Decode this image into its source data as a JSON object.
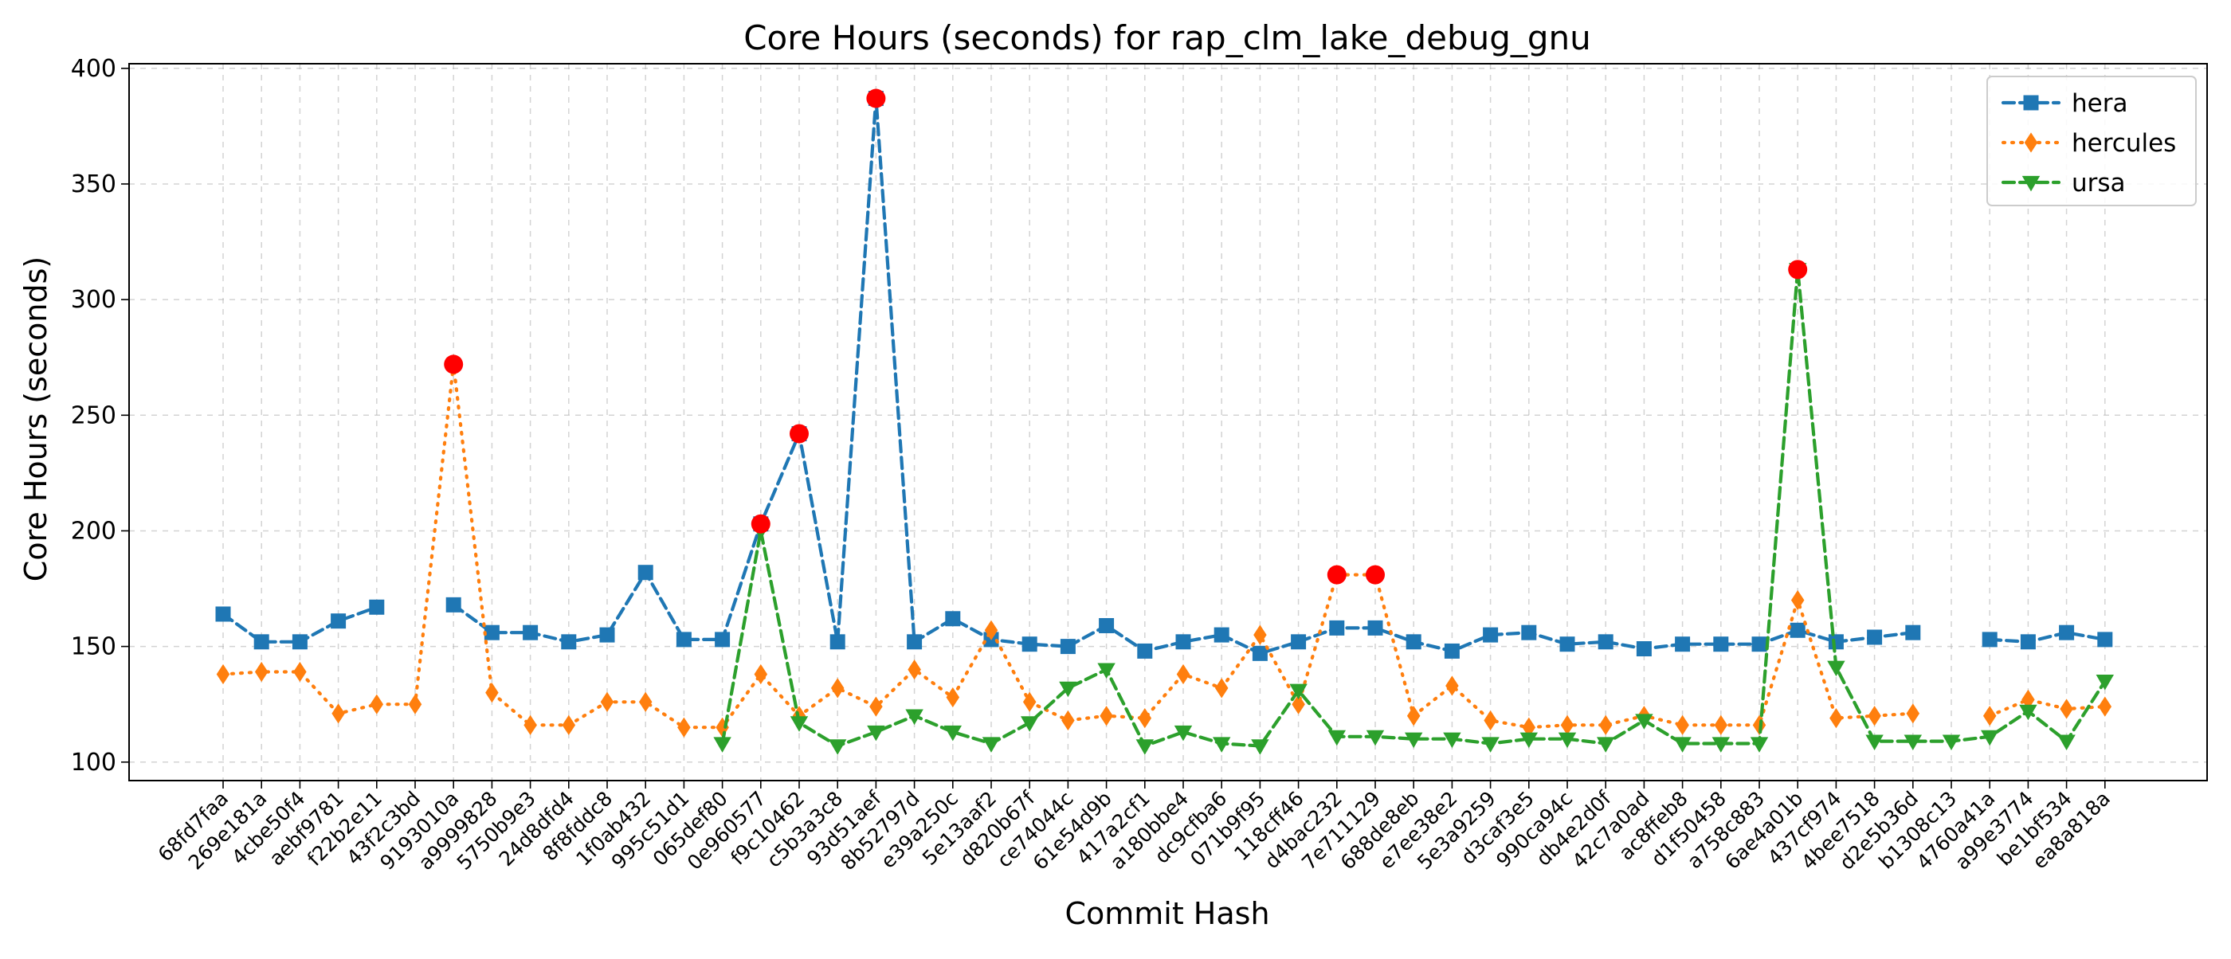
{
  "chart_data": {
    "type": "line",
    "title": "Core Hours (seconds) for rap_clm_lake_debug_gnu",
    "xlabel": "Commit Hash",
    "ylabel": "Core Hours (seconds)",
    "ylim": [
      92,
      402
    ],
    "yticks": [
      100,
      150,
      200,
      250,
      300,
      350,
      400
    ],
    "grid": true,
    "legend_position": "top-right",
    "categories": [
      "68fd7faa",
      "269e181a",
      "4cbe50f4",
      "aebf9781",
      "f22b2e11",
      "43f2c3bd",
      "9193010a",
      "a9999828",
      "5750b9e3",
      "24d8dfd4",
      "8f8fddc8",
      "1f0ab432",
      "995c51d1",
      "065def80",
      "0e960577",
      "f9c10462",
      "c5b3a3c8",
      "93d51aef",
      "8b52797d",
      "e39a250c",
      "5e13aaf2",
      "d820b67f",
      "ce74044c",
      "61e54d9b",
      "417a2cf1",
      "a180bbe4",
      "dc9cfba6",
      "071b9f95",
      "118cff46",
      "d4bac232",
      "7e711129",
      "688de8eb",
      "e7ee38e2",
      "5e3a9259",
      "d3caf3e5",
      "990ca94c",
      "db4e2d0f",
      "42c7a0ad",
      "ac8ffeb8",
      "d1f50458",
      "a758c883",
      "6ae4a01b",
      "437cf974",
      "4bee7518",
      "d2e5b36d",
      "b1308c13",
      "4760a41a",
      "a99e3774",
      "be1bf534",
      "ea8a818a"
    ],
    "series": [
      {
        "name": "hera",
        "color": "#1f77b4",
        "marker": "square",
        "linestyle": "dashed",
        "values": [
          164,
          152,
          152,
          161,
          167,
          null,
          168,
          156,
          156,
          152,
          155,
          182,
          153,
          153,
          203,
          242,
          152,
          387,
          152,
          162,
          153,
          151,
          150,
          159,
          148,
          152,
          155,
          147,
          152,
          158,
          158,
          152,
          148,
          155,
          156,
          151,
          152,
          149,
          151,
          151,
          151,
          157,
          152,
          154,
          156,
          null,
          153,
          152,
          156,
          153
        ]
      },
      {
        "name": "hercules",
        "color": "#ff7f0e",
        "marker": "diamond",
        "linestyle": "dotted",
        "values": [
          138,
          139,
          139,
          121,
          125,
          125,
          272,
          130,
          116,
          116,
          126,
          126,
          115,
          115,
          138,
          120,
          132,
          124,
          140,
          128,
          157,
          126,
          118,
          120,
          119,
          138,
          132,
          155,
          125,
          181,
          181,
          120,
          133,
          118,
          115,
          116,
          116,
          120,
          116,
          116,
          116,
          170,
          119,
          120,
          121,
          null,
          120,
          127,
          123,
          124
        ]
      },
      {
        "name": "ursa",
        "color": "#2ca02c",
        "marker": "triangle_down",
        "linestyle": "dashed",
        "values": [
          null,
          null,
          null,
          null,
          null,
          null,
          null,
          null,
          null,
          null,
          null,
          null,
          null,
          108,
          200,
          117,
          107,
          113,
          120,
          113,
          108,
          117,
          132,
          140,
          107,
          113,
          108,
          107,
          131,
          111,
          111,
          110,
          110,
          108,
          110,
          110,
          108,
          118,
          108,
          108,
          108,
          313,
          141,
          109,
          109,
          109,
          111,
          122,
          109,
          135
        ]
      }
    ],
    "highlights": [
      {
        "series": "hercules",
        "category": "9193010a",
        "value": 272,
        "color": "#ff0000"
      },
      {
        "series": "hera",
        "category": "0e960577",
        "value": 203,
        "color": "#ff0000"
      },
      {
        "series": "hera",
        "category": "f9c10462",
        "value": 242,
        "color": "#ff0000"
      },
      {
        "series": "hera",
        "category": "93d51aef",
        "value": 387,
        "color": "#ff0000"
      },
      {
        "series": "hercules",
        "category": "d4bac232",
        "value": 181,
        "color": "#ff0000"
      },
      {
        "series": "hercules",
        "category": "7e711129",
        "value": 181,
        "color": "#ff0000"
      },
      {
        "series": "ursa",
        "category": "6ae4a01b",
        "value": 313,
        "color": "#ff0000"
      }
    ]
  }
}
